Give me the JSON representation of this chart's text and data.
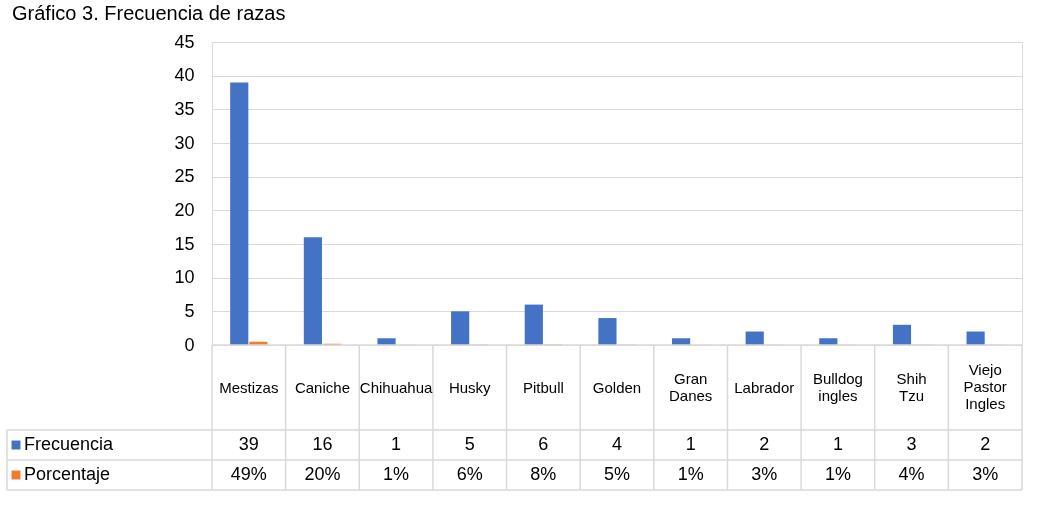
{
  "chart_data": {
    "type": "bar",
    "title": "Gráfico 3. Frecuencia de razas",
    "categories": [
      "Mestizas",
      "Caniche",
      "Chihuahua",
      "Husky",
      "Pitbull",
      "Golden",
      "Gran Danes",
      "Labrador",
      "Bulldog ingles",
      "Shih Tzu",
      "Viejo Pastor Ingles"
    ],
    "series": [
      {
        "name": "Frecuencia",
        "color": "#4472c4",
        "values": [
          39,
          16,
          1,
          5,
          6,
          4,
          1,
          2,
          1,
          3,
          2
        ],
        "value_labels": [
          "39",
          "16",
          "1",
          "5",
          "6",
          "4",
          "1",
          "2",
          "1",
          "3",
          "2"
        ]
      },
      {
        "name": "Porcentaje",
        "color": "#ed7d31",
        "values": [
          0.49,
          0.2,
          0.01,
          0.06,
          0.08,
          0.05,
          0.01,
          0.03,
          0.01,
          0.04,
          0.03
        ],
        "value_labels": [
          "49%",
          "20%",
          "1%",
          "6%",
          "8%",
          "5%",
          "1%",
          "3%",
          "1%",
          "4%",
          "3%"
        ]
      }
    ],
    "ylim": [
      0,
      45
    ],
    "yticks": [
      0,
      5,
      10,
      15,
      20,
      25,
      30,
      35,
      40,
      45
    ],
    "grid": "y",
    "legend": "bottom left"
  }
}
